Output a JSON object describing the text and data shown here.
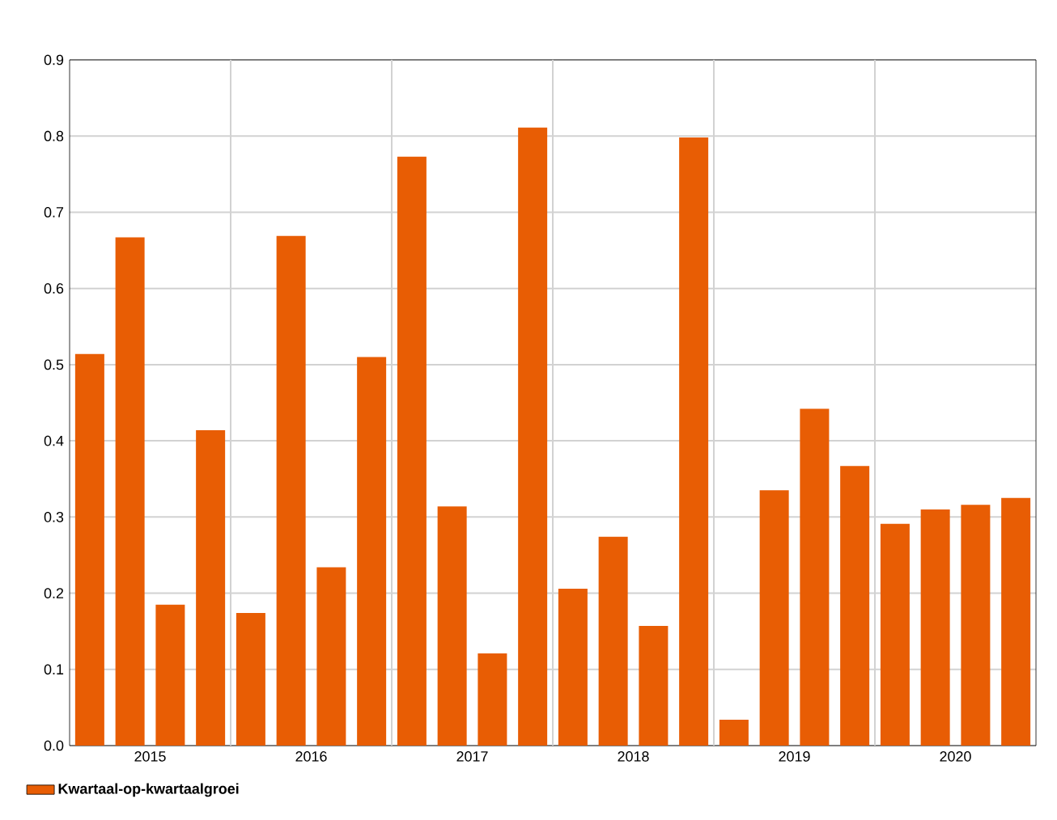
{
  "chart_data": {
    "type": "bar",
    "categories": [
      null,
      "2015",
      null,
      null,
      null,
      "2016",
      null,
      null,
      null,
      "2017",
      null,
      null,
      null,
      "2018",
      null,
      null,
      null,
      "2019",
      null,
      null,
      null,
      "2020",
      null,
      null
    ],
    "series": [
      {
        "name": "Kwartaal-op-kwartaalgroei",
        "color": "#e85d04",
        "values": [
          0.514,
          0.667,
          0.185,
          0.414,
          0.174,
          0.669,
          0.234,
          0.51,
          0.773,
          0.314,
          0.121,
          0.811,
          0.206,
          0.274,
          0.157,
          0.798,
          0.034,
          0.335,
          0.442,
          0.367,
          0.291,
          0.31,
          0.316,
          0.325
        ]
      }
    ],
    "ylim": [
      0,
      0.9
    ],
    "yticks": [
      {
        "value": 0,
        "label": "0.0"
      },
      0.1,
      0.2,
      0.3,
      0.4,
      0.5,
      0.6,
      0.7,
      0.8,
      0.9
    ],
    "grid": true,
    "legend": "bottom left"
  }
}
